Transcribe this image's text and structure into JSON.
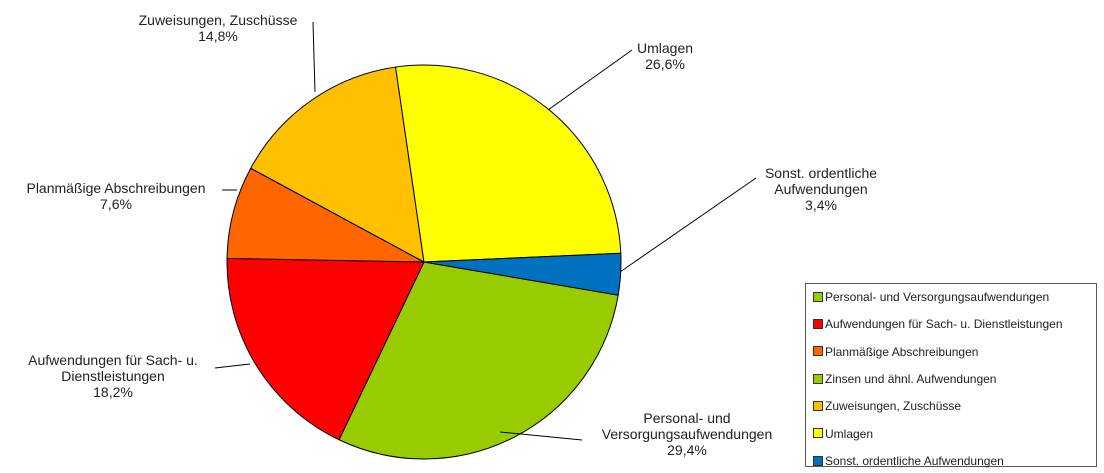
{
  "chart_data": {
    "type": "pie",
    "categories": [
      "Personal- und Versorgungsaufwendungen",
      "Aufwendungen für Sach- u. Dienstleistungen",
      "Planmäßige Abschreibungen",
      "Zinsen und ähnl. Aufwendungen",
      "Zuweisungen, Zuschüsse",
      "Umlagen",
      "Sonst. ordentliche Aufwendungen"
    ],
    "values": [
      29.4,
      18.2,
      7.6,
      0,
      14.8,
      26.6,
      3.4
    ],
    "value_labels": [
      "29,4%",
      "18,2%",
      "7,6%",
      null,
      "14,8%",
      "26,6%",
      "3,4%"
    ],
    "colors": [
      "#99cc00",
      "#ff0000",
      "#ff6600",
      "#99cc00",
      "#ffc000",
      "#ffff00",
      "#0070c0"
    ],
    "legend": "right"
  }
}
